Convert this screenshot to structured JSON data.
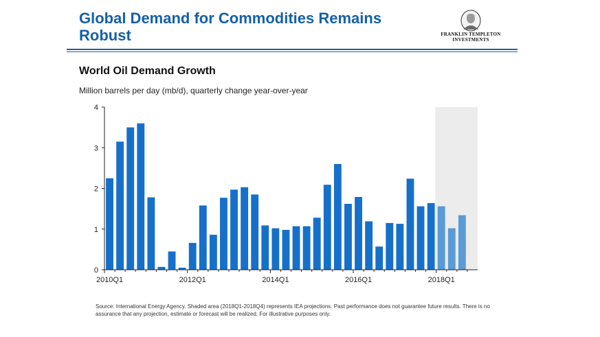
{
  "header": {
    "title": "Global Demand for Commodities Remains Robust",
    "logo_line1": "FRANKLIN TEMPLETON",
    "logo_line2": "INVESTMENTS"
  },
  "chart_data": {
    "type": "bar",
    "title": "World Oil Demand Growth",
    "subtitle": "Million barrels per day (mb/d), quarterly change year-over-year",
    "xlabel": "",
    "ylabel": "",
    "ylim": [
      0,
      4
    ],
    "yticks": [
      0,
      1,
      2,
      3,
      4
    ],
    "grid": false,
    "categories": [
      "2010Q1",
      "2010Q2",
      "2010Q3",
      "2010Q4",
      "2011Q1",
      "2011Q2",
      "2011Q3",
      "2011Q4",
      "2012Q1",
      "2012Q2",
      "2012Q3",
      "2012Q4",
      "2013Q1",
      "2013Q2",
      "2013Q3",
      "2013Q4",
      "2014Q1",
      "2014Q2",
      "2014Q3",
      "2014Q4",
      "2015Q1",
      "2015Q2",
      "2015Q3",
      "2015Q4",
      "2016Q1",
      "2016Q2",
      "2016Q3",
      "2016Q4",
      "2017Q1",
      "2017Q2",
      "2017Q3",
      "2017Q4",
      "2018Q1",
      "2018Q2",
      "2018Q3",
      "2018Q4"
    ],
    "x_tick_labels": [
      "2010Q1",
      "2012Q1",
      "2014Q1",
      "2016Q1",
      "2018Q1"
    ],
    "values": [
      2.25,
      3.15,
      3.5,
      3.6,
      1.78,
      0.07,
      0.45,
      0.05,
      0.66,
      1.58,
      0.86,
      1.77,
      1.97,
      2.03,
      1.85,
      1.09,
      1.02,
      0.98,
      1.07,
      1.07,
      1.28,
      2.09,
      2.6,
      1.62,
      1.79,
      1.19,
      0.57,
      1.15,
      1.13,
      2.24,
      1.56,
      1.64,
      1.56,
      1.02,
      1.34,
      null
    ],
    "projection_start_index": 32,
    "shaded_range": [
      "2018Q1",
      "2018Q4"
    ],
    "colors": {
      "actual": "#1670c9",
      "projected": "#5a9ad6",
      "shade": "#ececec",
      "axis": "#222222"
    }
  },
  "footer": {
    "source": "Source: International Energy Agency. Shaded area (2018Q1-2018Q4) represents IEA projections. Past performance does not guarantee future results. There is no assurance that any projection, estimate or forecast will be realized. For illustrative purposes only."
  }
}
